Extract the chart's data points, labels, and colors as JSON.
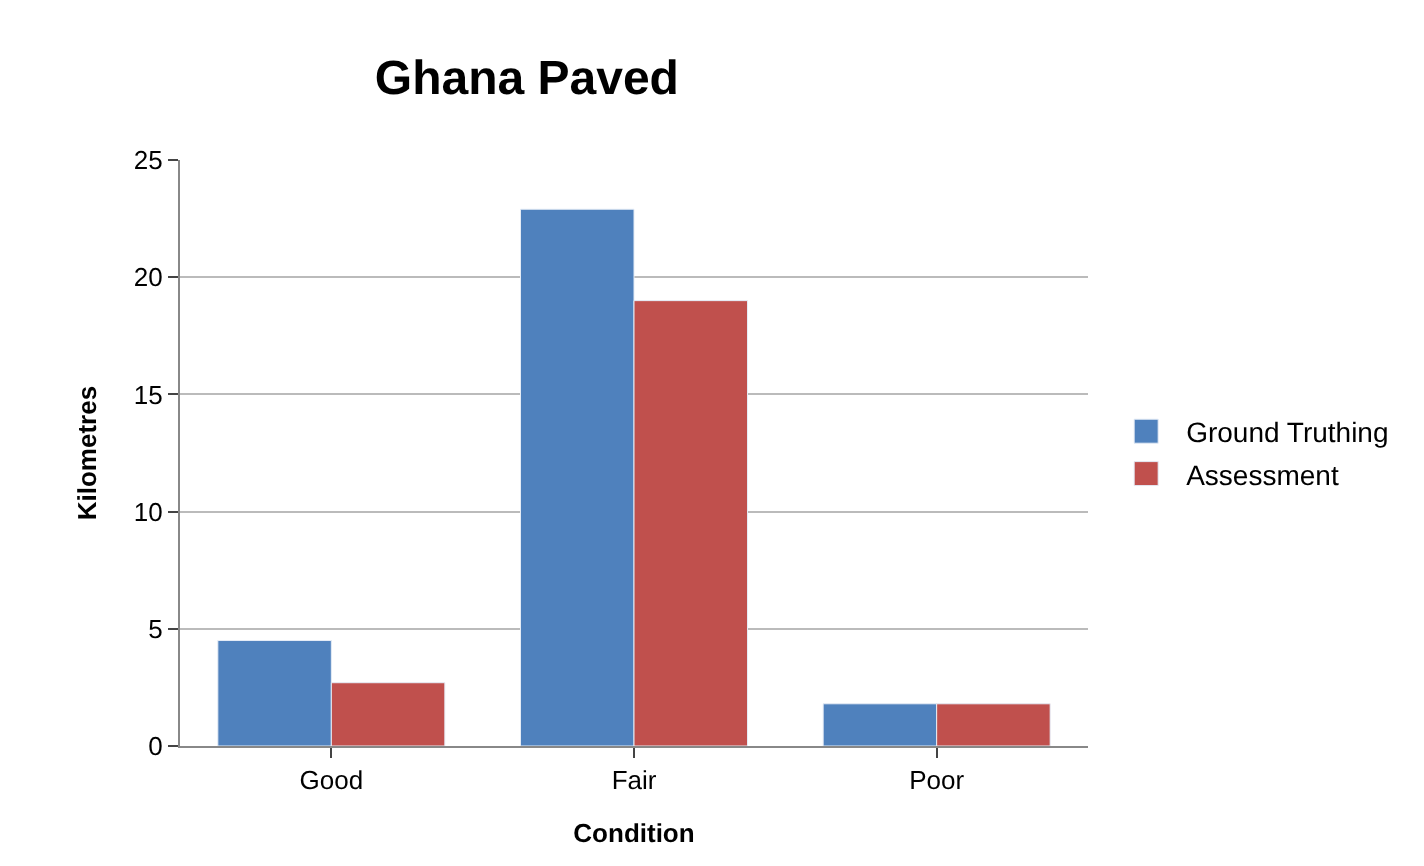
{
  "chart_data": {
    "type": "bar",
    "title": "Ghana Paved",
    "xlabel": "Condition",
    "ylabel": "Kilometres",
    "categories": [
      "Good",
      "Fair",
      "Poor"
    ],
    "series": [
      {
        "name": "Ground Truthing",
        "color": "#4f81bd",
        "values": [
          4.5,
          22.9,
          1.8
        ]
      },
      {
        "name": "Assessment",
        "color": "#c0504d",
        "values": [
          2.7,
          19.0,
          1.8
        ]
      }
    ],
    "ylim": [
      0,
      25
    ],
    "yticks": [
      0,
      5,
      10,
      15,
      20,
      25
    ],
    "grid": "y",
    "legend": "right"
  }
}
